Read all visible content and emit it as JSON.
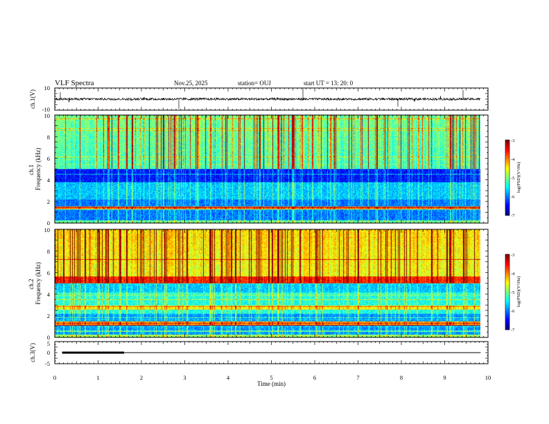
{
  "header": {
    "title": "VLF Spectra",
    "date": "Nov.25, 2025",
    "station": "station= OUJ",
    "start": "start  UT  =   13: 20: 0"
  },
  "colors": {
    "frame": "#000000",
    "background": "#ffffff",
    "colormap": [
      "#00007f",
      "#0000ff",
      "#0080ff",
      "#00ffff",
      "#80ff80",
      "#ffff00",
      "#ff8000",
      "#ff0000",
      "#7f0000"
    ]
  },
  "chart_data": [
    {
      "type": "line",
      "title": "VLF Spectra",
      "ylabel": "ch.1(V)",
      "ylim": [
        -10,
        10
      ],
      "yticks": [
        "10",
        "-10"
      ],
      "xlim": [
        0,
        10
      ],
      "description": "broadband waveform amplitude, mostly within ±2 V with occasional spikes"
    },
    {
      "type": "heatmap",
      "ylabel": "ch.1\nFrequency (kHz)",
      "ylim": [
        0,
        10
      ],
      "yticks": [
        "0",
        "2",
        "4",
        "6",
        "8",
        "10"
      ],
      "xlim": [
        0,
        9.83
      ],
      "colorbar": {
        "label": "log(PSD)(V²/Hz)",
        "range": [
          -7,
          -3
        ],
        "ticks": [
          "-3",
          "-4",
          "-5",
          "-6",
          "-7"
        ]
      }
    },
    {
      "type": "heatmap",
      "ylabel": "ch.2\nFrequency (kHz)",
      "ylim": [
        0,
        10
      ],
      "yticks": [
        "0",
        "2",
        "4",
        "6",
        "8",
        "10"
      ],
      "xlim": [
        0,
        9.83
      ],
      "colorbar": {
        "label": "log(PSD)(V²/Hz)",
        "range": [
          -7,
          -3
        ],
        "ticks": [
          "-3",
          "-4",
          "-5",
          "-6",
          "-7"
        ]
      }
    },
    {
      "type": "line",
      "ylabel": "ch.3(V)",
      "ylim": [
        -5,
        5
      ],
      "yticks": [
        "5",
        "0",
        "-5"
      ],
      "xlim": [
        0,
        10
      ],
      "xlabel": "Time  (min)",
      "xticks": [
        "0",
        "1",
        "2",
        "3",
        "4",
        "5",
        "6",
        "7",
        "8",
        "9",
        "10"
      ],
      "series": [
        {
          "name": "thick segment",
          "x": [
            0.17,
            1.6
          ],
          "y": [
            0,
            0
          ]
        },
        {
          "name": "baseline",
          "x": [
            0.17,
            9.83
          ],
          "y": [
            0,
            0
          ]
        }
      ]
    }
  ]
}
